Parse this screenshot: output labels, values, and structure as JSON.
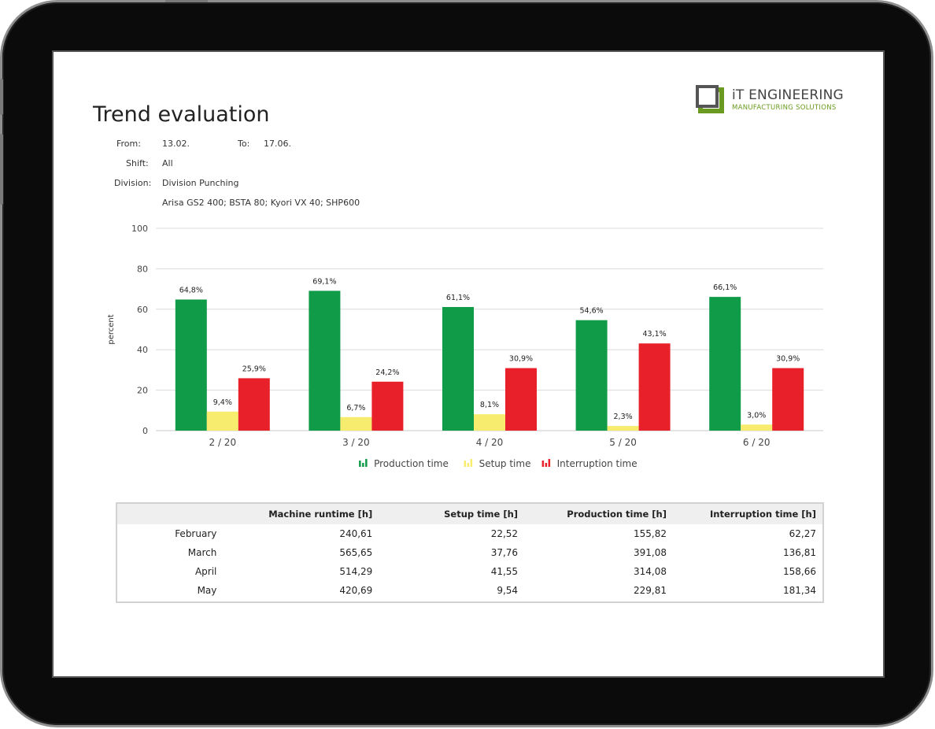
{
  "title": "Trend evaluation",
  "logo": {
    "main": "iT ENGINEERING",
    "sub": "MANUFACTURING SOLUTIONS",
    "colors": {
      "dark": "#444444",
      "green": "#6a9a1f"
    }
  },
  "filters": {
    "from_label": "From:",
    "from_value": "13.02.",
    "to_label": "To:",
    "to_value": "17.06.",
    "shift_label": "Shift:",
    "shift_value": "All",
    "division_label": "Division:",
    "division_value": "Division Punching",
    "machines": "Arisa GS2 400; BSTA 80; Kyori VX 40; SHP600"
  },
  "chart_data": {
    "type": "bar",
    "categories": [
      "2 / 20",
      "3 / 20",
      "4 / 20",
      "5 / 20",
      "6 / 20"
    ],
    "series": [
      {
        "name": "Production time",
        "color": "#109b48",
        "values": [
          64.8,
          69.1,
          61.1,
          54.6,
          66.1
        ],
        "labels": [
          "64,8%",
          "69,1%",
          "61,1%",
          "54,6%",
          "66,1%"
        ]
      },
      {
        "name": "Setup time",
        "color": "#f7ec6e",
        "values": [
          9.4,
          6.7,
          8.1,
          2.3,
          3.0
        ],
        "labels": [
          "9,4%",
          "6,7%",
          "8,1%",
          "2,3%",
          "3,0%"
        ]
      },
      {
        "name": "Interruption time",
        "color": "#e8202a",
        "values": [
          25.9,
          24.2,
          30.9,
          43.1,
          30.9
        ],
        "labels": [
          "25,9%",
          "24,2%",
          "30,9%",
          "43,1%",
          "30,9%"
        ]
      }
    ],
    "ylabel": "percent",
    "yticks": [
      0,
      20,
      40,
      60,
      80,
      100
    ],
    "ylim": [
      0,
      100
    ],
    "grid": true,
    "legend": "bottom-center"
  },
  "table": {
    "headers": [
      "",
      "Machine runtime [h]",
      "Setup time [h]",
      "Production time [h]",
      "Interruption time [h]"
    ],
    "rows": [
      [
        "February",
        "240,61",
        "22,52",
        "155,82",
        "62,27"
      ],
      [
        "March",
        "565,65",
        "37,76",
        "391,08",
        "136,81"
      ],
      [
        "April",
        "514,29",
        "41,55",
        "314,08",
        "158,66"
      ],
      [
        "May",
        "420,69",
        "9,54",
        "229,81",
        "181,34"
      ]
    ]
  }
}
